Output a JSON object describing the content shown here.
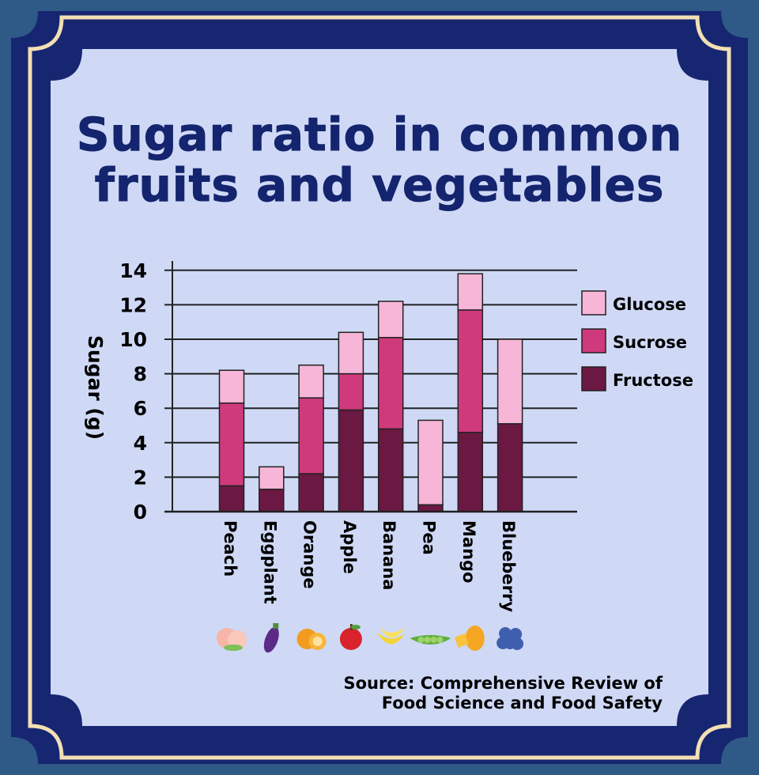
{
  "title_line1": "Sugar ratio in common",
  "title_line2": "fruits and vegetables",
  "source_line1": "Source: Comprehensive Review of",
  "source_line2": "Food Science and Food Safety",
  "colors": {
    "background": "#2f5a88",
    "frame_dark": "#172671",
    "frame_gold": "#f3dfb4",
    "panel": "#cfd9f6",
    "title": "#14246e",
    "glucose": "#f7b6d7",
    "sucrose": "#cf3a7c",
    "fructose": "#6b1842"
  },
  "chart_data": {
    "type": "bar",
    "stacked": true,
    "title": "Sugar ratio in common fruits and vegetables",
    "ylabel": "Sugar (g)",
    "xlabel": "",
    "ylim": [
      0,
      14
    ],
    "yticks": [
      0,
      2,
      4,
      6,
      8,
      10,
      12,
      14
    ],
    "grid": true,
    "legend": "right",
    "categories": [
      "Peach",
      "Eggplant",
      "Orange",
      "Apple",
      "Banana",
      "Pea",
      "Mango",
      "Blueberry"
    ],
    "icons": [
      "peach-icon",
      "eggplant-icon",
      "orange-icon",
      "apple-icon",
      "banana-icon",
      "pea-icon",
      "mango-icon",
      "blueberry-icon"
    ],
    "series": [
      {
        "name": "Fructose",
        "color": "#6b1842",
        "values": [
          1.5,
          1.3,
          2.2,
          5.9,
          4.8,
          0.4,
          4.6,
          5.1
        ]
      },
      {
        "name": "Sucrose",
        "color": "#cf3a7c",
        "values": [
          4.8,
          0,
          4.4,
          2.1,
          5.3,
          0,
          7.1,
          0
        ]
      },
      {
        "name": "Glucose",
        "color": "#f7b6d7",
        "values": [
          1.9,
          1.3,
          1.9,
          2.4,
          2.1,
          4.9,
          2.1,
          4.9
        ]
      }
    ],
    "legend_order": [
      "Glucose",
      "Sucrose",
      "Fructose"
    ]
  }
}
